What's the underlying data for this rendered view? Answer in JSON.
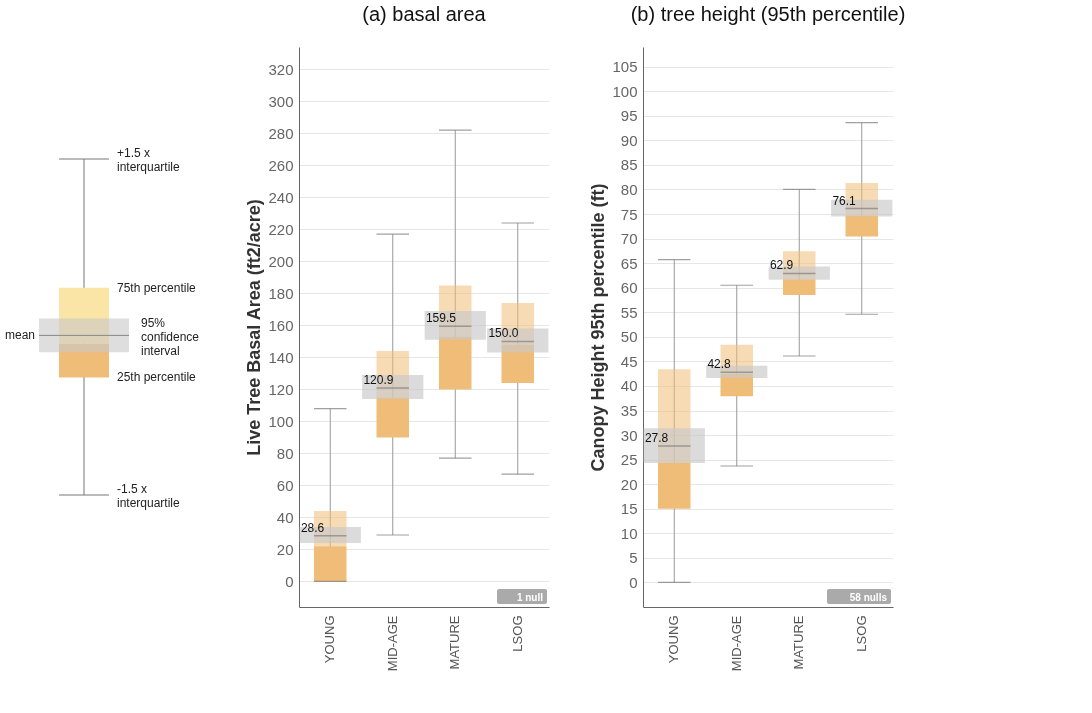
{
  "chart_data": [
    {
      "type": "other",
      "annotations": [
        "+1.5 x interquartile",
        "75th percentile",
        "mean",
        "95% confidence interval",
        "25th percentile",
        "-1.5 x interquartile"
      ]
    },
    {
      "type": "box",
      "title": "(a) basal area",
      "ylabel": "Live Tree Basal Area (ft2/acre)",
      "categories": [
        "YOUNG",
        "MID-AGE",
        "MATURE",
        "LSOG"
      ],
      "ylim": [
        -16,
        334
      ],
      "yticks": [
        0,
        20,
        40,
        60,
        80,
        100,
        120,
        140,
        160,
        180,
        200,
        220,
        240,
        260,
        280,
        300,
        320
      ],
      "grid": "y",
      "series": [
        {
          "type": "box",
          "color": "#f0bd78",
          "boxes": [
            {
              "low": 0,
              "q1": 0,
              "median": 22,
              "q3": 44,
              "high": 108,
              "mean": 28.6
            },
            {
              "low": 29,
              "q1": 90,
              "median": 115,
              "q3": 144,
              "high": 217,
              "mean": 120.9
            },
            {
              "low": 77,
              "q1": 120,
              "median": 153,
              "q3": 185,
              "high": 282,
              "mean": 159.5
            },
            {
              "low": 67,
              "q1": 124,
              "median": 148,
              "q3": 174,
              "high": 224,
              "mean": 150.0
            }
          ]
        },
        {
          "type": "bar",
          "color": "#c8c8c8",
          "base": [
            24,
            114,
            151,
            143
          ],
          "values": [
            10,
            15,
            18,
            15
          ]
        }
      ],
      "annotations": [
        {
          "text": "28.6",
          "x": "YOUNG",
          "y": 28.6
        },
        {
          "text": "120.9",
          "x": "MID-AGE",
          "y": 120.9
        },
        {
          "text": "159.5",
          "x": "MATURE",
          "y": 159.5
        },
        {
          "text": "150.0",
          "x": "LSOG",
          "y": 150.0
        },
        "1 null"
      ]
    },
    {
      "type": "box",
      "title": "(b) tree height (95th percentile)",
      "ylabel": "Canopy Height 95th percentile (ft)",
      "categories": [
        "YOUNG",
        "MID-AGE",
        "MATURE",
        "LSOG"
      ],
      "ylim": [
        -5,
        109
      ],
      "yticks": [
        0,
        5,
        10,
        15,
        20,
        25,
        30,
        35,
        40,
        45,
        50,
        55,
        60,
        65,
        70,
        75,
        80,
        85,
        90,
        95,
        100,
        105
      ],
      "grid": "y",
      "series": [
        {
          "type": "box",
          "color": "#f0bd78",
          "boxes": [
            {
              "low": 0,
              "q1": 15,
              "median": 24.4,
              "q3": 43.4,
              "high": 65.7,
              "mean": 27.8
            },
            {
              "low": 23.7,
              "q1": 37.9,
              "median": 42.5,
              "q3": 48.4,
              "high": 60.5,
              "mean": 42.8
            },
            {
              "low": 46.1,
              "q1": 58.5,
              "median": 61.7,
              "q3": 67.4,
              "high": 80,
              "mean": 62.9
            },
            {
              "low": 54.6,
              "q1": 70.4,
              "median": 74.7,
              "q3": 81.3,
              "high": 93.6,
              "mean": 76.1
            }
          ]
        },
        {
          "type": "bar",
          "color": "#c8c8c8",
          "base": [
            24.3,
            41.6,
            61.6,
            74.5
          ],
          "values": [
            7.1,
            2.5,
            2.7,
            3.4
          ]
        }
      ],
      "annotations": [
        {
          "text": "27.8",
          "x": "YOUNG",
          "y": 27.8
        },
        {
          "text": "42.8",
          "x": "MID-AGE",
          "y": 42.8
        },
        {
          "text": "62.9",
          "x": "MATURE",
          "y": 62.9
        },
        {
          "text": "76.1",
          "x": "LSOG",
          "y": 76.1
        },
        "58 nulls"
      ]
    }
  ]
}
